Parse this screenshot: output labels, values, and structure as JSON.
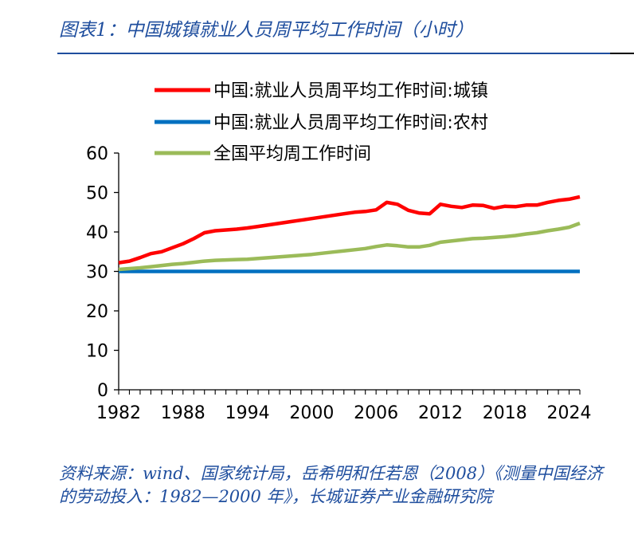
{
  "figure": {
    "title": "图表1：中国城镇就业人员周平均工作时间（小时）",
    "source": "资料来源：wind、国家统计局，岳希明和任若恩（2008）《测量中国经济的劳动投入：1982—2000 年》，长城证券产业金融研究院",
    "title_color": "#1f4e9e"
  },
  "chart_data": {
    "type": "line",
    "title": "",
    "xlabel": "",
    "ylabel": "",
    "xlim": [
      1982,
      2025
    ],
    "ylim": [
      0,
      60
    ],
    "x_ticks": [
      "1982",
      "1988",
      "1994",
      "2000",
      "2006",
      "2012",
      "2018",
      "2024"
    ],
    "y_ticks": [
      "0",
      "10",
      "20",
      "30",
      "40",
      "50",
      "60"
    ],
    "grid": false,
    "legend_position": "top",
    "x": [
      1982,
      1983,
      1984,
      1985,
      1986,
      1987,
      1988,
      1989,
      1990,
      1991,
      1992,
      1993,
      1994,
      1995,
      1996,
      1997,
      1998,
      1999,
      2000,
      2001,
      2002,
      2003,
      2004,
      2005,
      2006,
      2007,
      2008,
      2009,
      2010,
      2011,
      2012,
      2013,
      2014,
      2015,
      2016,
      2017,
      2018,
      2019,
      2020,
      2021,
      2022,
      2023,
      2024,
      2025
    ],
    "series": [
      {
        "name": "中国:就业人员周平均工作时间:城镇",
        "color": "#ff0000",
        "values": [
          32.2,
          32.6,
          33.5,
          34.5,
          35.0,
          36.0,
          37.0,
          38.3,
          39.8,
          40.3,
          40.5,
          40.7,
          41.0,
          41.4,
          41.8,
          42.2,
          42.6,
          43.0,
          43.4,
          43.8,
          44.2,
          44.6,
          45.0,
          45.2,
          45.6,
          47.5,
          47.0,
          45.5,
          44.8,
          44.6,
          47.0,
          46.5,
          46.2,
          46.8,
          46.7,
          46.0,
          46.5,
          46.4,
          46.8,
          46.8,
          47.5,
          48.0,
          48.3,
          48.9
        ]
      },
      {
        "name": "中国:就业人员周平均工作时间:农村",
        "color": "#0070c0",
        "values": [
          30.0,
          30.0,
          30.0,
          30.0,
          30.0,
          30.0,
          30.0,
          30.0,
          30.0,
          30.0,
          30.0,
          30.0,
          30.0,
          30.0,
          30.0,
          30.0,
          30.0,
          30.0,
          30.0,
          30.0,
          30.0,
          30.0,
          30.0,
          30.0,
          30.0,
          30.0,
          30.0,
          30.0,
          30.0,
          30.0,
          30.0,
          30.0,
          30.0,
          30.0,
          30.0,
          30.0,
          30.0,
          30.0,
          30.0,
          30.0,
          30.0,
          30.0,
          30.0,
          30.0
        ]
      },
      {
        "name": "全国平均周工作时间",
        "color": "#9bbb59",
        "values": [
          30.5,
          30.7,
          30.9,
          31.2,
          31.5,
          31.8,
          32.0,
          32.3,
          32.6,
          32.8,
          32.9,
          33.0,
          33.1,
          33.3,
          33.5,
          33.7,
          33.9,
          34.1,
          34.3,
          34.6,
          34.9,
          35.2,
          35.5,
          35.8,
          36.3,
          36.7,
          36.5,
          36.2,
          36.2,
          36.6,
          37.4,
          37.7,
          38.0,
          38.3,
          38.4,
          38.6,
          38.8,
          39.1,
          39.5,
          39.8,
          40.3,
          40.7,
          41.2,
          42.2
        ]
      }
    ]
  }
}
